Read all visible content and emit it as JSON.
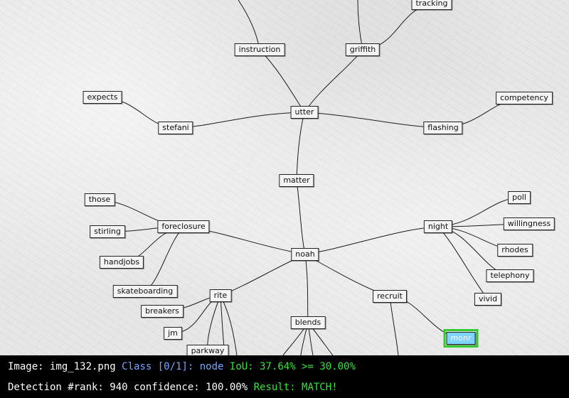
{
  "nodes": {
    "tracking": "tracking",
    "instruction": "instruction",
    "griffith": "griffith",
    "expects": "expects",
    "competency": "competency",
    "stefani": "stefani",
    "utter": "utter",
    "flashing": "flashing",
    "matter": "matter",
    "those": "those",
    "poll": "poll",
    "foreclosure": "foreclosure",
    "night": "night",
    "willingness": "willingness",
    "stirling": "stirling",
    "noah": "noah",
    "rhodes": "rhodes",
    "handjobs": "handjobs",
    "telephony": "telephony",
    "skateboarding": "skateboarding",
    "rite": "rite",
    "recruit": "recruit",
    "vivid": "vivid",
    "breakers": "breakers",
    "blends": "blends",
    "jm": "jm",
    "monr": "monr",
    "parkway": "parkway"
  },
  "highlighted_node": "monr",
  "highlight_color": "#2ecc2e",
  "status": {
    "line1": {
      "image": "Image: img_132.png",
      "class_text": "Class [0/1]: node",
      "iou_text": "IoU: 37.64% >= 30.00%"
    },
    "line2": {
      "detection": "Detection #rank: 940 confidence: 100.00%",
      "result": "Result: MATCH!"
    }
  }
}
